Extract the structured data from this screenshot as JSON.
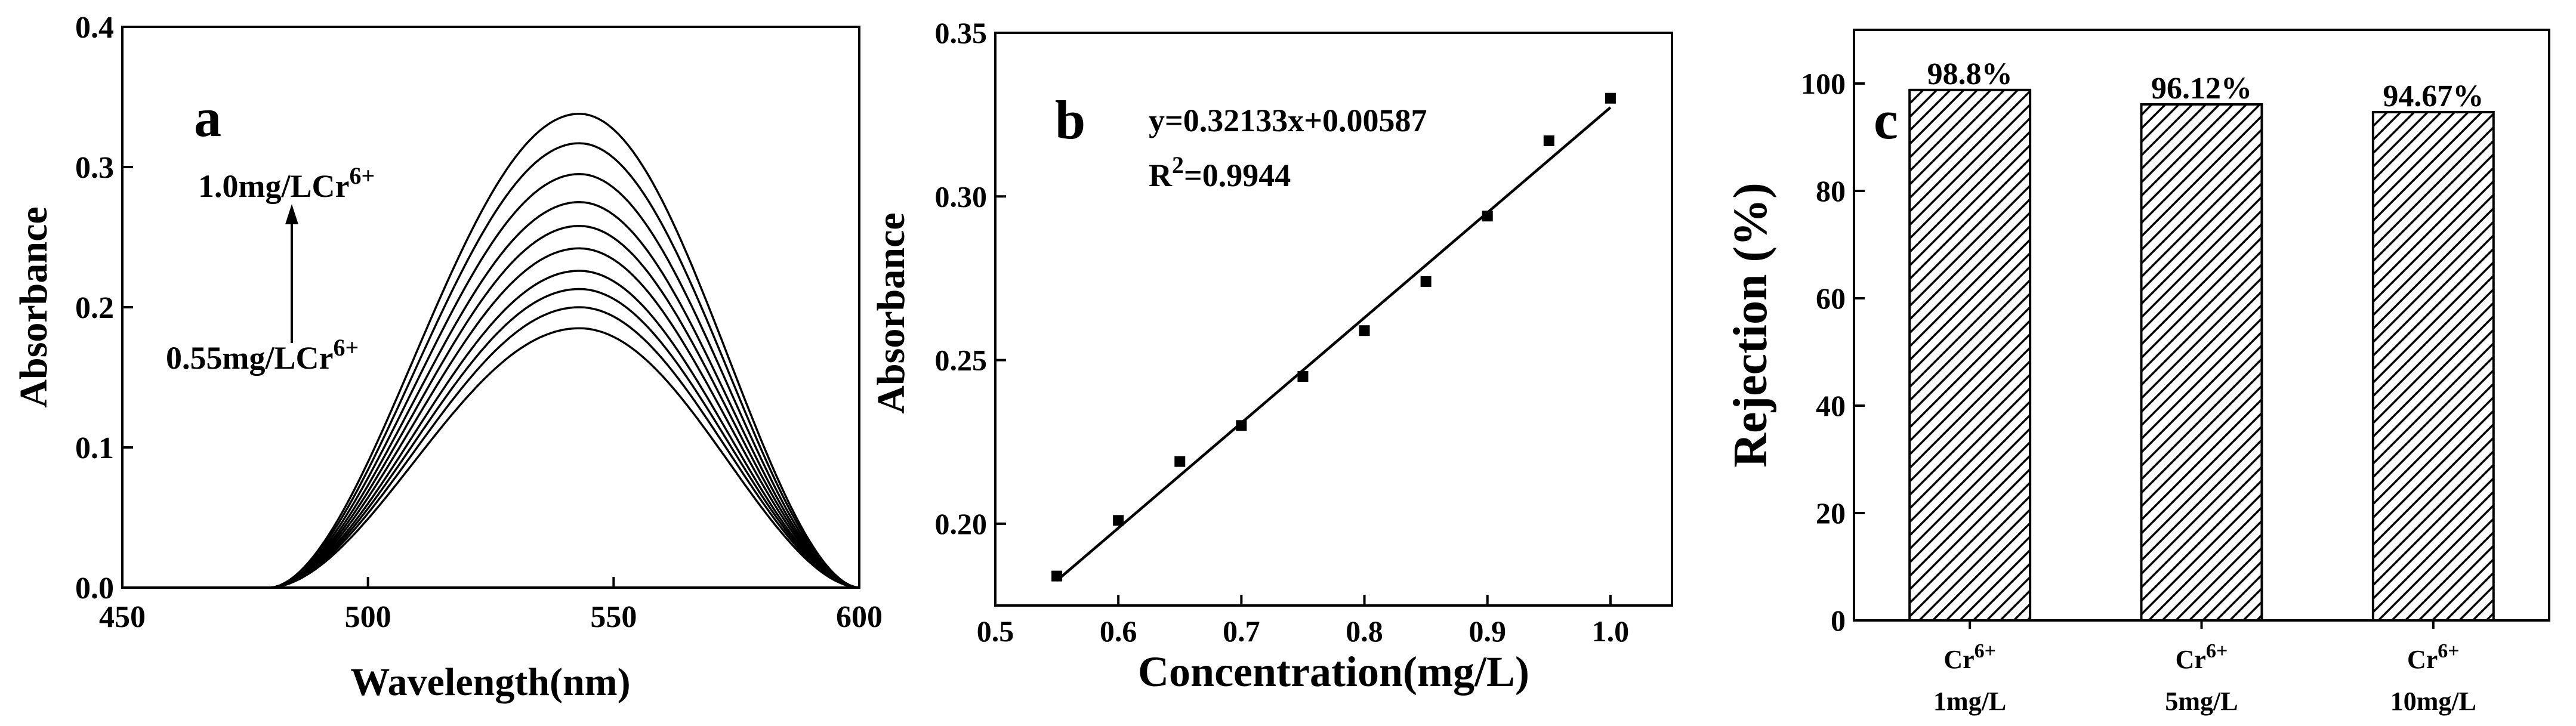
{
  "chart_data": [
    {
      "panel": "a",
      "type": "line",
      "xlabel": "Wavelength(nm)",
      "ylabel": "Absorbance",
      "xlim": [
        450,
        600
      ],
      "ylim": [
        0.0,
        0.4
      ],
      "xticks": [
        "450",
        "500",
        "550",
        "600"
      ],
      "yticks": [
        "0.0",
        "0.1",
        "0.2",
        "0.3",
        "0.4"
      ],
      "x_start": 480,
      "x_end": 600,
      "x_peak": 543,
      "series_peaks": [
        0.185,
        0.2,
        0.213,
        0.226,
        0.242,
        0.258,
        0.275,
        0.295,
        0.317,
        0.338
      ],
      "annotations": {
        "top": {
          "main": "1.0mg/LCr",
          "sup": "6+"
        },
        "bottom": {
          "main": "0.55mg/LCr",
          "sup": "6+"
        }
      }
    },
    {
      "panel": "b",
      "type": "scatter",
      "xlabel": "Concentration(mg/L)",
      "ylabel": "Absorbance",
      "xlim": [
        0.5,
        1.05
      ],
      "ylim": [
        0.175,
        0.35
      ],
      "xticks": [
        "0.5",
        "0.6",
        "0.7",
        "0.8",
        "0.9",
        "1.0"
      ],
      "yticks": [
        "0.20",
        "0.25",
        "0.30",
        "0.35"
      ],
      "x": [
        0.55,
        0.6,
        0.65,
        0.7,
        0.75,
        0.8,
        0.85,
        0.9,
        0.95,
        1.0
      ],
      "y": [
        0.184,
        0.201,
        0.219,
        0.23,
        0.245,
        0.259,
        0.274,
        0.294,
        0.317,
        0.33
      ],
      "fit": {
        "slope": 0.32133,
        "intercept": 0.00587
      },
      "equation": "y=0.32133x+0.00587",
      "r2": {
        "main": "R",
        "sup": "2",
        "rest": "=0.9944"
      }
    },
    {
      "panel": "c",
      "type": "bar",
      "ylabel": "Rejection (%)",
      "ylim": [
        0,
        110
      ],
      "yticks": [
        "0",
        "20",
        "40",
        "60",
        "80",
        "100"
      ],
      "categories": [
        {
          "line1": "Cr",
          "sup": "6+",
          "line2": "1mg/L"
        },
        {
          "line1": "Cr",
          "sup": "6+",
          "line2": "5mg/L"
        },
        {
          "line1": "Cr",
          "sup": "6+",
          "line2": "10mg/L"
        }
      ],
      "values": [
        98.8,
        96.12,
        94.67
      ],
      "value_labels": [
        "98.8%",
        "96.12%",
        "94.67%"
      ]
    }
  ]
}
